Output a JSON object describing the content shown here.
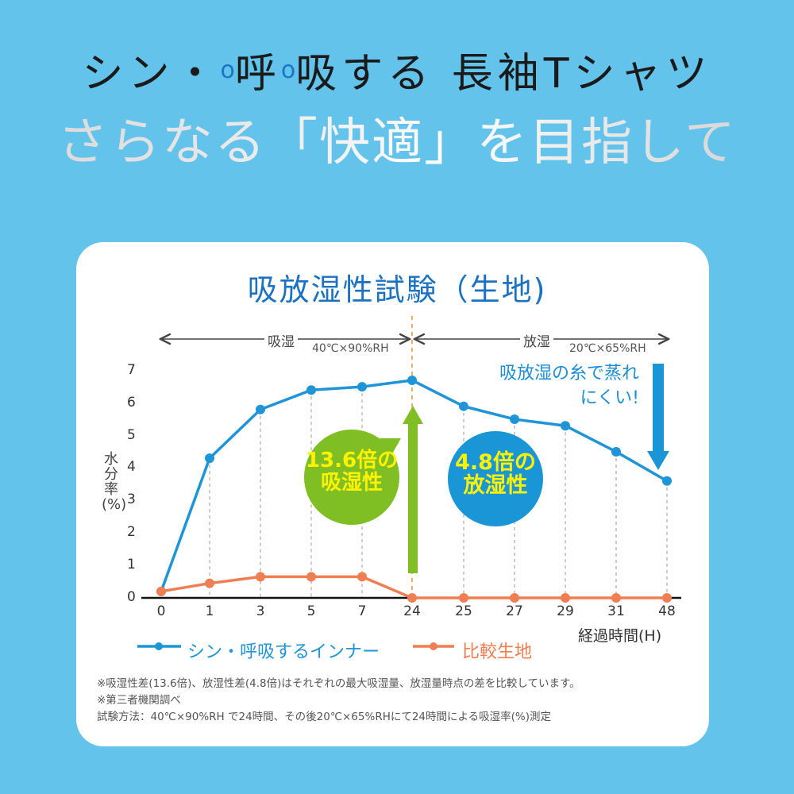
{
  "header": {
    "title_parts": [
      "シン・",
      "o",
      "呼",
      "o",
      "吸する 長袖Tシャツ"
    ],
    "title": "シン・呼吸する 長袖Tシャツ",
    "subtitle": "さらなる「快適」を目指して"
  },
  "colors": {
    "background": "#63c3ea",
    "card": "#ffffff",
    "title_blue": "#1b72c0",
    "series_blue": "#1f95d8",
    "series_orange": "#ef7f52",
    "bubble_green": "#7fbf24",
    "bubble_blue": "#1a96d7",
    "bubble_text": "#fff200"
  },
  "chart_data": {
    "type": "line",
    "title": "吸放湿性試験（生地)",
    "xlabel": "経過時間(H)",
    "ylabel": "水分率(%)",
    "ylim": [
      0,
      7
    ],
    "yticks": [
      "0",
      "1",
      "2",
      "3",
      "4",
      "5",
      "6",
      "7"
    ],
    "categories": [
      "0",
      "1",
      "3",
      "5",
      "7",
      "24",
      "25",
      "27",
      "29",
      "31",
      "48"
    ],
    "series": [
      {
        "name": "シン・呼吸するインナー",
        "color": "#1f95d8",
        "values": [
          0.2,
          4.3,
          5.8,
          6.4,
          6.5,
          6.7,
          5.9,
          5.5,
          5.3,
          4.5,
          3.6
        ]
      },
      {
        "name": "比較生地",
        "color": "#ef7f52",
        "values": [
          0.2,
          0.45,
          0.65,
          0.65,
          0.65,
          0.0,
          0.0,
          0.0,
          0.0,
          0.0,
          0.0
        ]
      }
    ],
    "grid": "vertical dashed at each category",
    "legend_position": "bottom",
    "phases": [
      {
        "label": "吸湿",
        "condition": "40℃×90%RH"
      },
      {
        "label": "放湿",
        "condition": "20℃×65%RH"
      }
    ],
    "annotations": {
      "absorb_bubble": [
        "13.6倍の",
        "吸湿性"
      ],
      "release_bubble": [
        "4.8倍の",
        "放湿性"
      ],
      "callout": [
        "吸放湿の糸で蒸れ",
        "にくい!"
      ]
    }
  },
  "notes": [
    "※吸湿性差(13.6倍)、放湿性差(4.8倍)はそれぞれの最大吸湿量、放湿量時点の差を比較しています。",
    "※第三者機関調べ",
    "試験方法：40℃×90%RH で24時間、その後20℃×65%RHにて24時間による吸湿率(%)測定"
  ]
}
